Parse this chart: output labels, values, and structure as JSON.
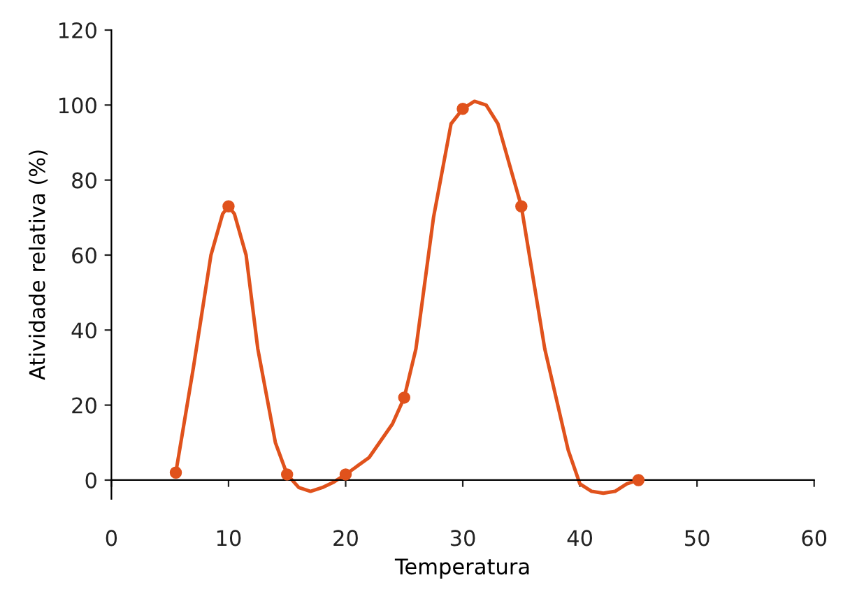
{
  "chart_data": {
    "type": "line",
    "xlabel": "Temperatura",
    "ylabel": "Atividade relativa (%)",
    "xlim": [
      0,
      60
    ],
    "ylim": [
      -5,
      120
    ],
    "xticks": [
      0,
      10,
      20,
      30,
      40,
      50,
      60
    ],
    "yticks": [
      0,
      20,
      40,
      60,
      80,
      100,
      120
    ],
    "grid": false,
    "series": [
      {
        "color": "#e0521c",
        "x": [
          5.5,
          7,
          8.5,
          9.5,
          10,
          10.5,
          11.5,
          12.5,
          14,
          15,
          16,
          17,
          18,
          19,
          20,
          22,
          24,
          25,
          26,
          27.5,
          29,
          30,
          31,
          32,
          33,
          35,
          37,
          39,
          40,
          41,
          42,
          43,
          44,
          45
        ],
        "values": [
          2,
          30,
          60,
          71,
          73,
          71,
          60,
          35,
          10,
          1.5,
          -2,
          -3,
          -2,
          -0.5,
          1.5,
          6,
          15,
          22,
          35,
          70,
          95,
          99,
          101,
          100,
          95,
          73,
          35,
          8,
          -1,
          -3,
          -3.5,
          -3,
          -1,
          0
        ]
      },
      {
        "type": "scatter",
        "color": "#e0521c",
        "marker": "circle",
        "x": [
          5.5,
          10,
          15,
          20,
          25,
          30,
          35,
          45
        ],
        "values": [
          2,
          73,
          1.5,
          1.5,
          22,
          99,
          73,
          0
        ]
      }
    ]
  }
}
